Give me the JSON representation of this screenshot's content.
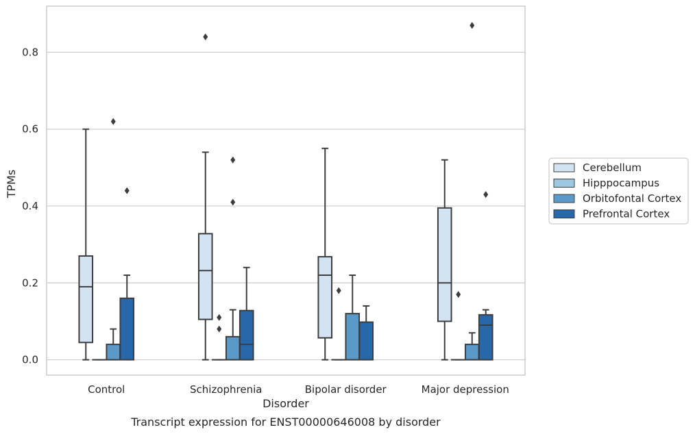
{
  "chart_data": {
    "type": "box",
    "caption": "Transcript expression for ENST00000646008 by disorder",
    "xlabel": "Disorder",
    "ylabel": "TPMs",
    "ylim": [
      -0.04,
      0.92
    ],
    "yticks": [
      "0.0",
      "0.2",
      "0.4",
      "0.6",
      "0.8"
    ],
    "ytick_values": [
      0.0,
      0.2,
      0.4,
      0.6,
      0.8
    ],
    "grid": "horizontal",
    "legend_position": "right",
    "categories": [
      "Control",
      "Schizophrenia",
      "Bipolar disorder",
      "Major depression"
    ],
    "series": [
      {
        "name": "Cerebellum",
        "color": "#d3e3f2",
        "boxes": [
          {
            "whislo": 0.0,
            "q1": 0.045,
            "med": 0.19,
            "q3": 0.27,
            "whishi": 0.6,
            "fliers": []
          },
          {
            "whislo": 0.0,
            "q1": 0.105,
            "med": 0.232,
            "q3": 0.328,
            "whishi": 0.54,
            "fliers": [
              0.84
            ]
          },
          {
            "whislo": 0.0,
            "q1": 0.057,
            "med": 0.22,
            "q3": 0.268,
            "whishi": 0.55,
            "fliers": []
          },
          {
            "whislo": 0.0,
            "q1": 0.1,
            "med": 0.2,
            "q3": 0.395,
            "whishi": 0.52,
            "fliers": []
          }
        ]
      },
      {
        "name": "Hipppocampus",
        "color": "#9ec8e1",
        "boxes": [
          {
            "whislo": 0.0,
            "q1": 0.0,
            "med": 0.0,
            "q3": 0.0,
            "whishi": 0.0,
            "fliers": []
          },
          {
            "whislo": 0.0,
            "q1": 0.0,
            "med": 0.0,
            "q3": 0.0,
            "whishi": 0.0,
            "fliers": [
              0.08,
              0.11
            ]
          },
          {
            "whislo": 0.0,
            "q1": 0.0,
            "med": 0.0,
            "q3": 0.0,
            "whishi": 0.0,
            "fliers": [
              0.18
            ]
          },
          {
            "whislo": 0.0,
            "q1": 0.0,
            "med": 0.0,
            "q3": 0.0,
            "whishi": 0.0,
            "fliers": [
              0.17
            ]
          }
        ]
      },
      {
        "name": "Orbitofontal Cortex",
        "color": "#5b9ac8",
        "boxes": [
          {
            "whislo": 0.0,
            "q1": 0.0,
            "med": 0.0,
            "q3": 0.04,
            "whishi": 0.08,
            "fliers": [
              0.62
            ]
          },
          {
            "whislo": 0.0,
            "q1": 0.0,
            "med": 0.0,
            "q3": 0.06,
            "whishi": 0.13,
            "fliers": [
              0.41,
              0.52
            ]
          },
          {
            "whislo": 0.0,
            "q1": 0.0,
            "med": 0.0,
            "q3": 0.12,
            "whishi": 0.22,
            "fliers": []
          },
          {
            "whislo": 0.0,
            "q1": 0.0,
            "med": 0.0,
            "q3": 0.04,
            "whishi": 0.07,
            "fliers": [
              0.87
            ]
          }
        ]
      },
      {
        "name": "Prefrontal Cortex",
        "color": "#2768ab",
        "boxes": [
          {
            "whislo": 0.0,
            "q1": 0.0,
            "med": 0.0,
            "q3": 0.16,
            "whishi": 0.22,
            "fliers": [
              0.44
            ]
          },
          {
            "whislo": 0.0,
            "q1": 0.0,
            "med": 0.04,
            "q3": 0.128,
            "whishi": 0.24,
            "fliers": []
          },
          {
            "whislo": 0.0,
            "q1": 0.0,
            "med": 0.0,
            "q3": 0.098,
            "whishi": 0.14,
            "fliers": []
          },
          {
            "whislo": 0.0,
            "q1": 0.0,
            "med": 0.09,
            "q3": 0.117,
            "whishi": 0.13,
            "fliers": [
              0.43
            ]
          }
        ]
      }
    ]
  }
}
